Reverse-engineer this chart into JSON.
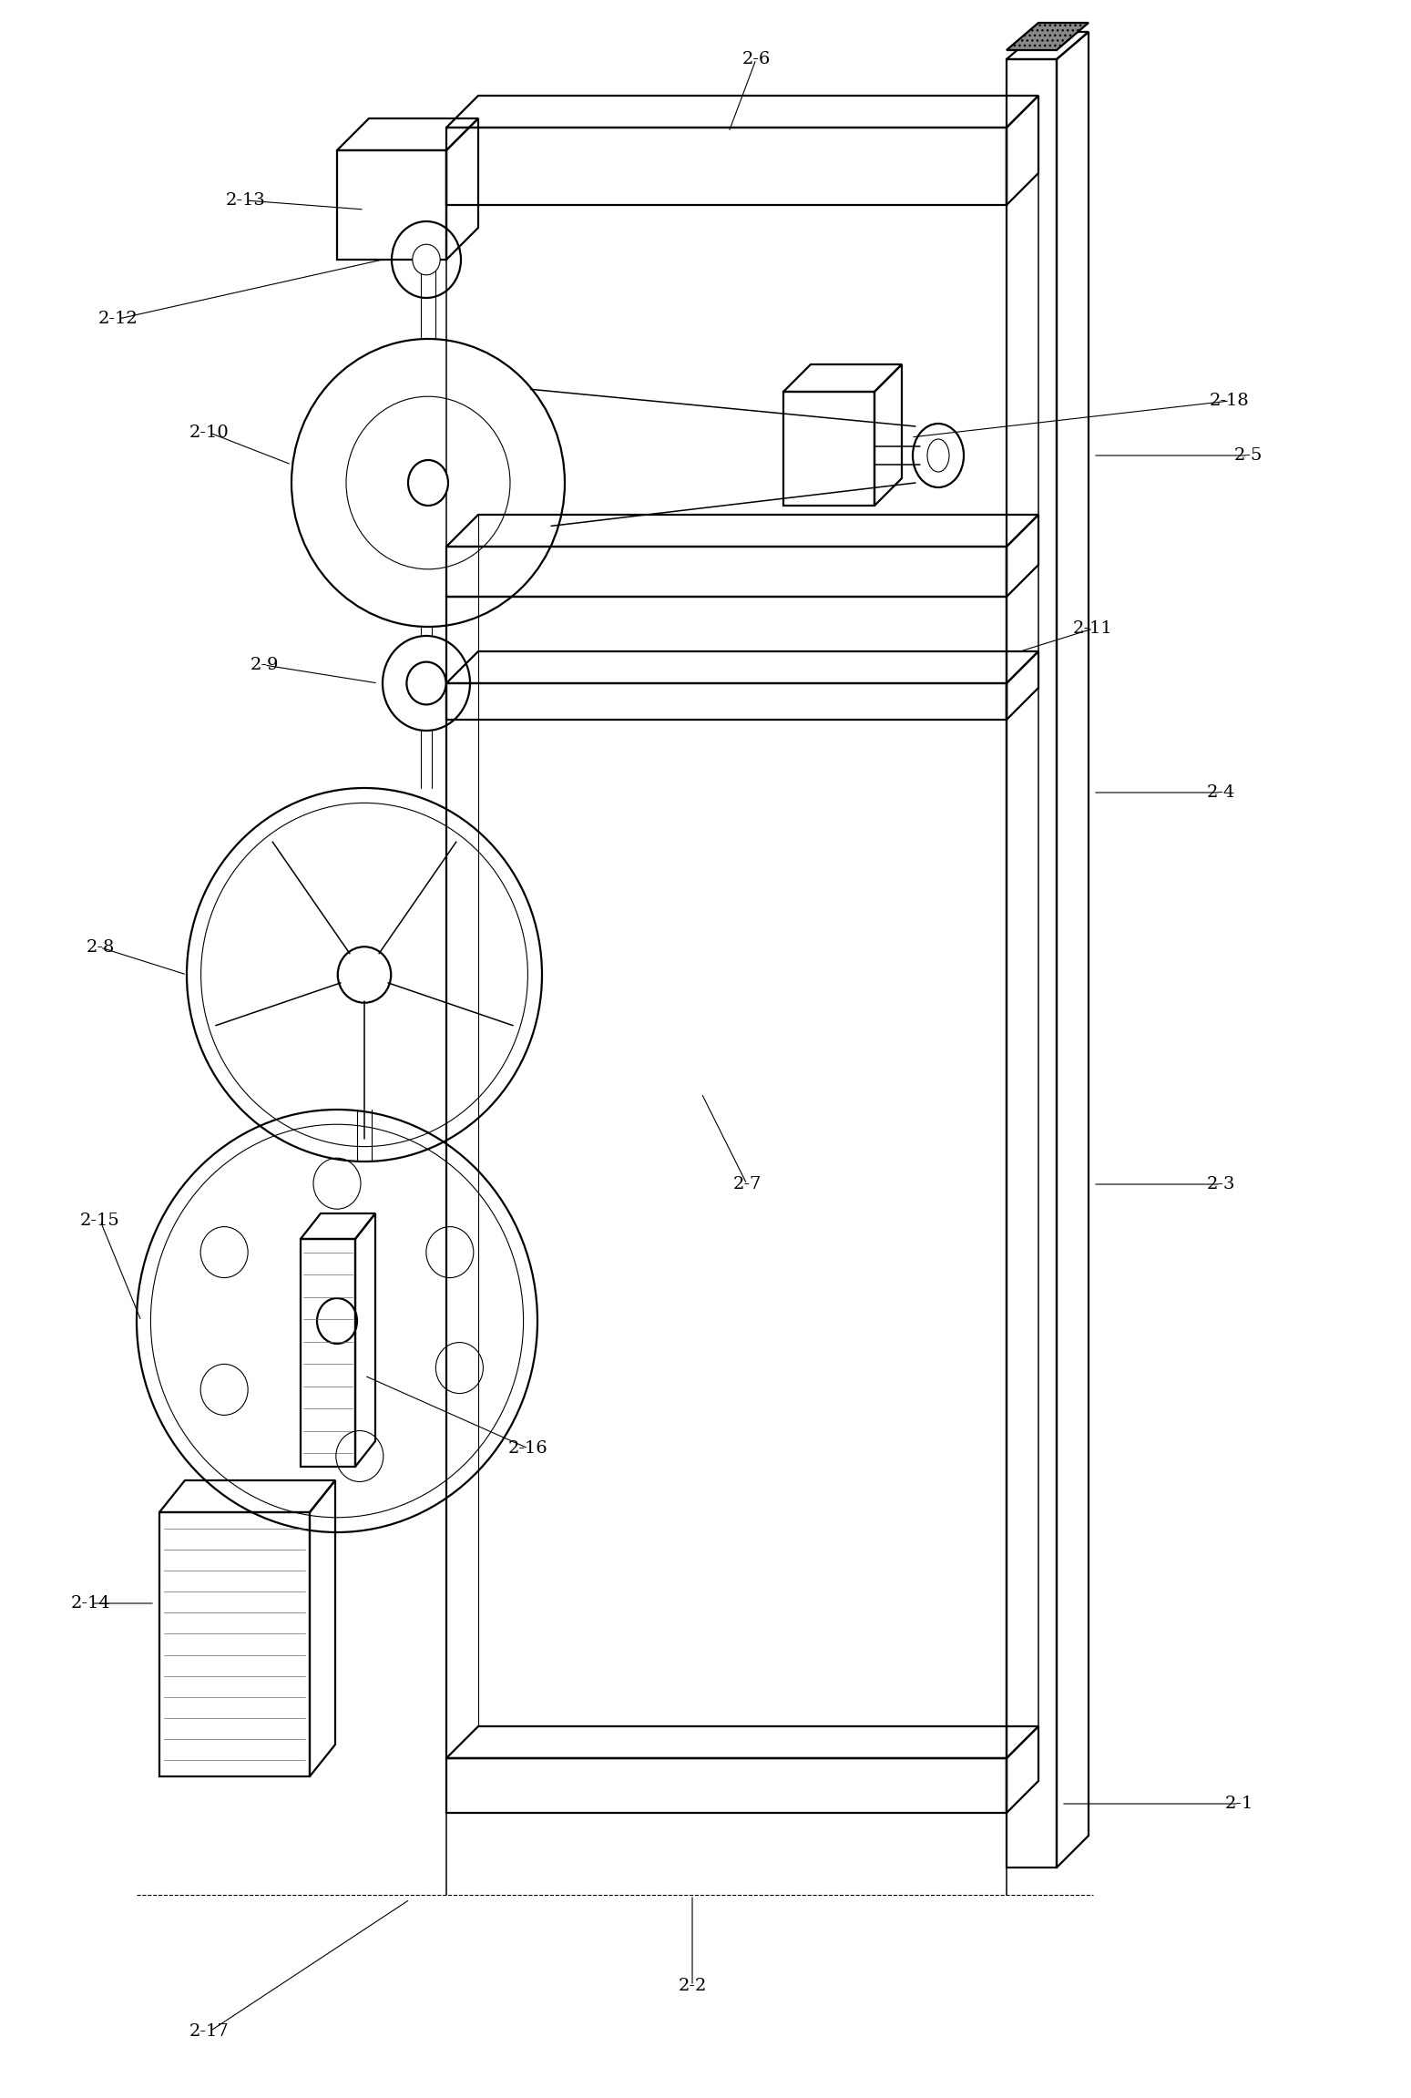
{
  "bg_color": "#ffffff",
  "line_color": "#000000",
  "lw_main": 1.6,
  "lw_thin": 0.8,
  "lw_med": 1.1,
  "fig_w": 15.49,
  "fig_h": 23.03,
  "dpi": 100
}
